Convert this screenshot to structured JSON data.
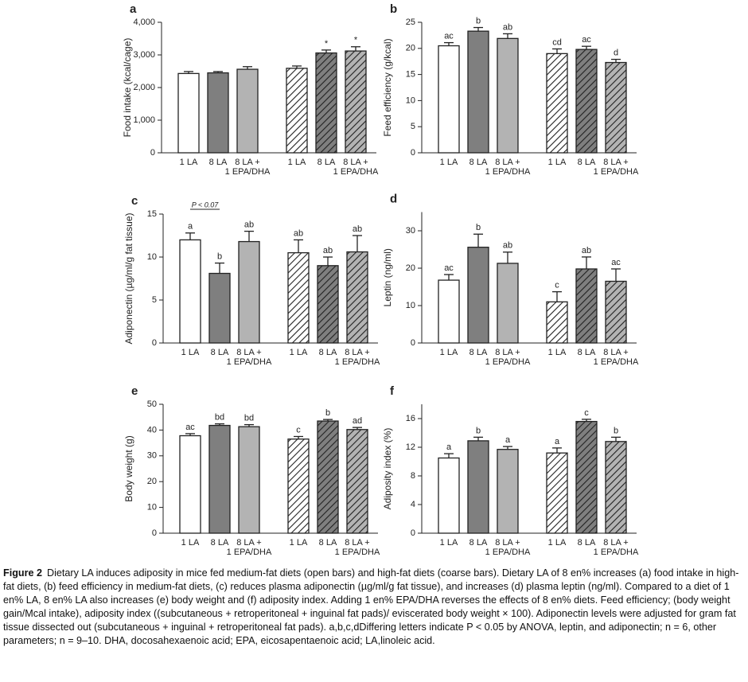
{
  "chart_data": [
    {
      "type": "bar",
      "panel": "a",
      "ylabel": "Food intake (kcal/cage)",
      "categories": [
        "1 LA",
        "8 LA",
        "8 LA +\n1 EPA/DHA",
        "1 LA",
        "8 LA",
        "8 LA +\n1 EPA/DHA"
      ],
      "values": [
        2430,
        2450,
        2560,
        2590,
        3060,
        3120
      ],
      "errors": [
        60,
        40,
        80,
        70,
        90,
        130
      ],
      "annotations": [
        null,
        null,
        null,
        null,
        "*",
        "*"
      ],
      "colors": [
        "#ffffff",
        "#7f7f7f",
        "#b3b3b3",
        "#ffffff",
        "#7f7f7f",
        "#b3b3b3"
      ],
      "hatched": [
        false,
        false,
        false,
        true,
        true,
        true
      ],
      "ylim": [
        0,
        4000
      ],
      "yticks": [
        0,
        {
          "value": 1000,
          "label": "1,000"
        },
        {
          "value": 2000,
          "label": "2,000"
        },
        {
          "value": 3000,
          "label": "3,000"
        },
        {
          "value": 4000,
          "label": "4,000"
        }
      ]
    },
    {
      "type": "bar",
      "panel": "b",
      "ylabel": "Feed efficiency (g/kcal)",
      "categories": [
        "1 LA",
        "8 LA",
        "8 LA +\n1 EPA/DHA",
        "1 LA",
        "8 LA",
        "8 LA +\n1 EPA/DHA"
      ],
      "values": [
        20.5,
        23.3,
        21.9,
        19.0,
        19.8,
        17.3
      ],
      "errors": [
        0.6,
        0.7,
        0.9,
        0.9,
        0.6,
        0.6
      ],
      "annotations": [
        "ac",
        "b",
        "ab",
        "cd",
        "ac",
        "d"
      ],
      "colors": [
        "#ffffff",
        "#7f7f7f",
        "#b3b3b3",
        "#ffffff",
        "#7f7f7f",
        "#b3b3b3"
      ],
      "hatched": [
        false,
        false,
        false,
        true,
        true,
        true
      ],
      "ylim": [
        0,
        25
      ],
      "yticks": [
        0,
        5,
        10,
        15,
        20,
        25
      ]
    },
    {
      "type": "bar",
      "panel": "c",
      "ylabel": "Adiponectin (µg/ml/g fat tissue)",
      "categories": [
        "1 LA",
        "8 LA",
        "8 LA +\n1 EPA/DHA",
        "1 LA",
        "8 LA",
        "8 LA +\n1 EPA/DHA"
      ],
      "values": [
        12.0,
        8.1,
        11.8,
        10.5,
        9.0,
        10.6
      ],
      "errors": [
        0.8,
        1.2,
        1.2,
        1.5,
        1.0,
        1.9
      ],
      "annotations": [
        "a",
        "b",
        "ab",
        "ab",
        "ab",
        "ab"
      ],
      "bracket": {
        "label": "P < 0.07",
        "between": [
          0,
          1
        ]
      },
      "colors": [
        "#ffffff",
        "#7f7f7f",
        "#b3b3b3",
        "#ffffff",
        "#7f7f7f",
        "#b3b3b3"
      ],
      "hatched": [
        false,
        false,
        false,
        true,
        true,
        true
      ],
      "ylim": [
        0,
        15
      ],
      "yticks": [
        0,
        5,
        10,
        15
      ]
    },
    {
      "type": "bar",
      "panel": "d",
      "ylabel": "Leptin (ng/ml)",
      "categories": [
        "1 LA",
        "8 LA",
        "8 LA +\n1 EPA/DHA",
        "1 LA",
        "8 LA",
        "8 LA +\n1 EPA/DHA"
      ],
      "values": [
        16.8,
        25.6,
        21.3,
        11.0,
        19.8,
        16.5
      ],
      "errors": [
        1.5,
        3.5,
        3.0,
        2.7,
        3.2,
        3.3
      ],
      "annotations": [
        "ac",
        "b",
        "ab",
        "c",
        "ab",
        "ac"
      ],
      "colors": [
        "#ffffff",
        "#7f7f7f",
        "#b3b3b3",
        "#ffffff",
        "#7f7f7f",
        "#b3b3b3"
      ],
      "hatched": [
        false,
        false,
        false,
        true,
        true,
        true
      ],
      "ylim": [
        0,
        35
      ],
      "yticks": [
        0,
        10,
        20,
        30
      ]
    },
    {
      "type": "bar",
      "panel": "e",
      "ylabel": "Body weight (g)",
      "categories": [
        "1 LA",
        "8 LA",
        "8 LA +\n1 EPA/DHA",
        "1 LA",
        "8 LA",
        "8 LA +\n1 EPA/DHA"
      ],
      "values": [
        37.8,
        41.8,
        41.3,
        36.5,
        43.5,
        40.2
      ],
      "errors": [
        0.8,
        0.6,
        0.8,
        1.0,
        0.6,
        0.8
      ],
      "annotations": [
        "ac",
        "bd",
        "bd",
        "c",
        "b",
        "ad"
      ],
      "colors": [
        "#ffffff",
        "#7f7f7f",
        "#b3b3b3",
        "#ffffff",
        "#7f7f7f",
        "#b3b3b3"
      ],
      "hatched": [
        false,
        false,
        false,
        true,
        true,
        true
      ],
      "ylim": [
        0,
        50
      ],
      "yticks": [
        0,
        10,
        20,
        30,
        40,
        50
      ]
    },
    {
      "type": "bar",
      "panel": "f",
      "ylabel": "Adiposity index (%)",
      "categories": [
        "1 LA",
        "8 LA",
        "8 LA +\n1 EPA/DHA",
        "1 LA",
        "8 LA",
        "8 LA +\n1 EPA/DHA"
      ],
      "values": [
        10.5,
        12.9,
        11.7,
        11.2,
        15.6,
        12.8
      ],
      "errors": [
        0.6,
        0.5,
        0.4,
        0.7,
        0.3,
        0.6
      ],
      "annotations": [
        "a",
        "b",
        "a",
        "a",
        "c",
        "b"
      ],
      "colors": [
        "#ffffff",
        "#7f7f7f",
        "#b3b3b3",
        "#ffffff",
        "#7f7f7f",
        "#b3b3b3"
      ],
      "hatched": [
        false,
        false,
        false,
        true,
        true,
        true
      ],
      "ylim": [
        0,
        18
      ],
      "yticks": [
        0,
        4,
        8,
        12,
        16
      ]
    }
  ],
  "caption": {
    "label": "Figure 2",
    "text": "Dietary LA induces adiposity in mice fed medium-fat diets (open bars) and high-fat diets (coarse bars). Dietary LA of 8 en% increases (a) food intake in high-fat diets, (b) feed efficiency in medium-fat diets, (c) reduces plasma adiponectin (µg/ml/g fat tissue), and increases (d) plasma leptin (ng/ml). Compared to a diet of 1 en% LA, 8 en% LA also increases (e) body weight and (f) adiposity index. Adding 1 en% EPA/DHA reverses the effects of 8 en% diets. Feed efficiency; (body weight gain/Mcal intake), adiposity index ((subcutaneous + retroperitoneal + inguinal fat pads)/ eviscerated body weight × 100). Adiponectin levels were adjusted for gram fat tissue dissected out (subcutaneous + inguinal + retroperitoneal fat pads). a,b,c,dDiffering letters indicate P < 0.05 by ANOVA, leptin, and adiponectin; n = 6, other parameters; n = 9–10. DHA, docosahexaenoic acid; EPA, eicosapentaenoic acid; LA,linoleic acid."
  }
}
